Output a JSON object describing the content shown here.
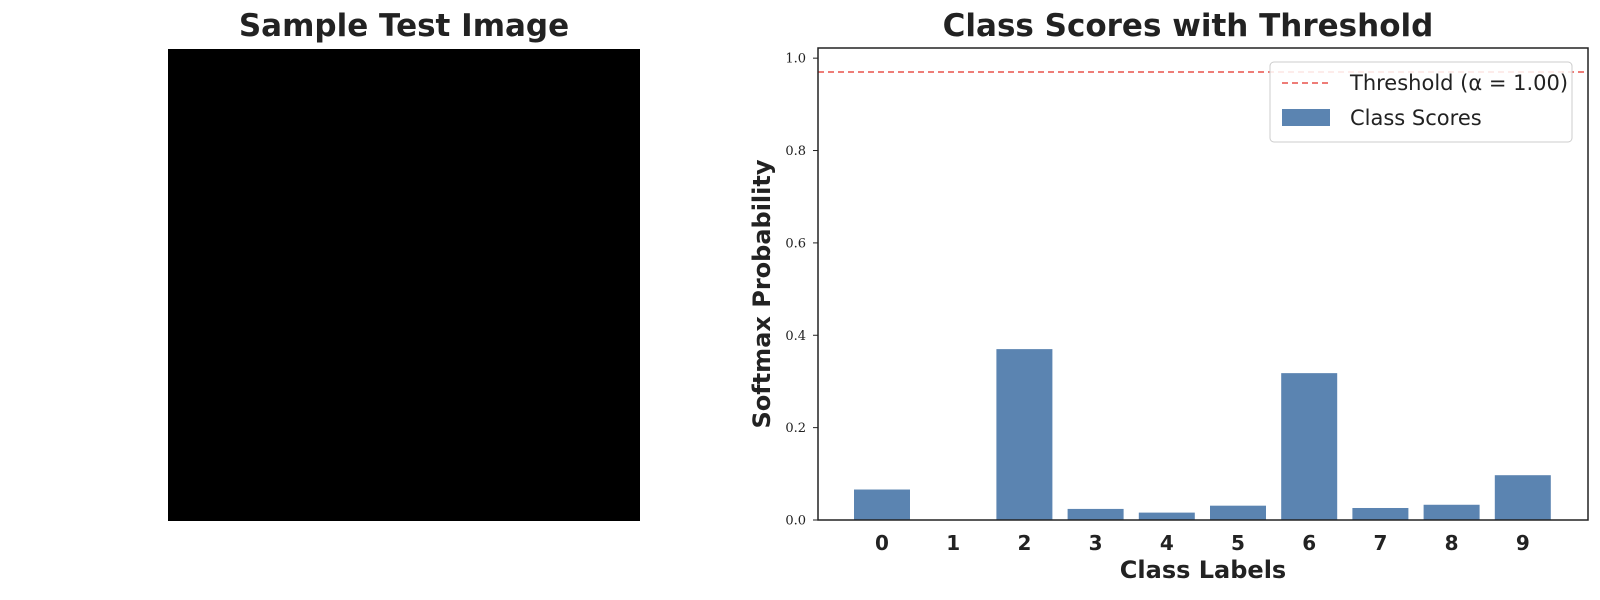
{
  "left_panel": {
    "title": "Sample Test Image",
    "grid_size": 28,
    "crop_columns": [
      3,
      22
    ],
    "pixels": [
      [
        0,
        0,
        0,
        0,
        0,
        0,
        0,
        0,
        0,
        0,
        0,
        0,
        0,
        0,
        0,
        0,
        0,
        0,
        0,
        0,
        0,
        0,
        0,
        0,
        0,
        0,
        0,
        0
      ],
      [
        0,
        0,
        0,
        0,
        0,
        0,
        0,
        0,
        0,
        0,
        0,
        0,
        0,
        0,
        0,
        0,
        0,
        0,
        0,
        0,
        0,
        0,
        0,
        0,
        0,
        0,
        0,
        0
      ],
      [
        0,
        0,
        0,
        0,
        0,
        0,
        0,
        0,
        0,
        0,
        0,
        0,
        0,
        0,
        0,
        0,
        0,
        0,
        0,
        0,
        0,
        0,
        0,
        0,
        0,
        0,
        0,
        0
      ],
      [
        0,
        0,
        0,
        0,
        0,
        0,
        0,
        0,
        0,
        0,
        0,
        0,
        0,
        0,
        0,
        0,
        0,
        0,
        0,
        0,
        0,
        0,
        0,
        0,
        0,
        0,
        0,
        0
      ],
      [
        0,
        0,
        0,
        0,
        0,
        0,
        0,
        0,
        0,
        0,
        0,
        0,
        0,
        0,
        0,
        0,
        0,
        0,
        0,
        0,
        0,
        0,
        0,
        0,
        0,
        0,
        0,
        0
      ],
      [
        0,
        0,
        0,
        0,
        0,
        0,
        0,
        0,
        0,
        0,
        0,
        0,
        0,
        0,
        0,
        0,
        0,
        0,
        0,
        0,
        0,
        0,
        0,
        0,
        0,
        0,
        0,
        0
      ],
      [
        0,
        0,
        0,
        0,
        0,
        0,
        0,
        0,
        0,
        0,
        0,
        0,
        0,
        0,
        0,
        0,
        0,
        0,
        0,
        0,
        0,
        0,
        0,
        0,
        0,
        0,
        0,
        0
      ],
      [
        0,
        0,
        0,
        0,
        0,
        0,
        0,
        0,
        0,
        0,
        0,
        0,
        0,
        0,
        0,
        0,
        0,
        0,
        0,
        0,
        0,
        0,
        0,
        0,
        0,
        0,
        0,
        0
      ],
      [
        0,
        0,
        0,
        0,
        0,
        0,
        0,
        0,
        0,
        0,
        0,
        0,
        0,
        0,
        0,
        0,
        0,
        0,
        0,
        0,
        0,
        0,
        0,
        0,
        0,
        0,
        0,
        0
      ],
      [
        0,
        0,
        0,
        0,
        0,
        0,
        0,
        0,
        0,
        0,
        0,
        0,
        0,
        0,
        0,
        0,
        0,
        0,
        0,
        0,
        0,
        0,
        0,
        0,
        0,
        0,
        0,
        0
      ],
      [
        0,
        0,
        0,
        0,
        0,
        0,
        0,
        0,
        0,
        0,
        0,
        0,
        0,
        0,
        0,
        0,
        0,
        0,
        0,
        0,
        0,
        0,
        0,
        0,
        0,
        0,
        0,
        0
      ],
      [
        0,
        0,
        0,
        0,
        0,
        0,
        0,
        0,
        0,
        0,
        0,
        0,
        0,
        0,
        0,
        0,
        0,
        0,
        0,
        0,
        0,
        0,
        0,
        0,
        0,
        0,
        0,
        0
      ],
      [
        0,
        0,
        0,
        0,
        0,
        0,
        0,
        0,
        0,
        0,
        0,
        0,
        0,
        0,
        0,
        0,
        0,
        0,
        0,
        0,
        0,
        0,
        0,
        0,
        0,
        0,
        0,
        0
      ],
      [
        0,
        0,
        0,
        0,
        0,
        0,
        0,
        0,
        0,
        0,
        0,
        0,
        0,
        0,
        0,
        0,
        0,
        0,
        0,
        0,
        0,
        0,
        0,
        0,
        0,
        0,
        0,
        0
      ],
      [
        0,
        0,
        0,
        0,
        0,
        0,
        0,
        0,
        0,
        0,
        0,
        0,
        0,
        0,
        0,
        0,
        0,
        0,
        0,
        0,
        0,
        0,
        0,
        0,
        0,
        0,
        0,
        0
      ],
      [
        0,
        0,
        0,
        0,
        0,
        0,
        0,
        0,
        0,
        0,
        0,
        0,
        0,
        0,
        0,
        0,
        0,
        0,
        0,
        0,
        0,
        0,
        0,
        0,
        0,
        0,
        0,
        0
      ],
      [
        0,
        0,
        0,
        0,
        0,
        0,
        0,
        0,
        0,
        0,
        0,
        0,
        0,
        0,
        0,
        0,
        0,
        0,
        0,
        0,
        0,
        0,
        0,
        0,
        0,
        0,
        0,
        0
      ],
      [
        0,
        0,
        0,
        0,
        0,
        0,
        0,
        0,
        0,
        0,
        0,
        0,
        0,
        0,
        0,
        0,
        0,
        0,
        0,
        0,
        0,
        0,
        0,
        0,
        0,
        0,
        0,
        0
      ],
      [
        0,
        0,
        0,
        0,
        0,
        0,
        0,
        0,
        0,
        0,
        0,
        0,
        0,
        0,
        0,
        0,
        0,
        0,
        0,
        0,
        0,
        0,
        0,
        0,
        0,
        0,
        0,
        0
      ],
      [
        0,
        0,
        0,
        0,
        0,
        0,
        0,
        0,
        0,
        0,
        0,
        0,
        0,
        0,
        0,
        0,
        0,
        0,
        0,
        0,
        0,
        0,
        0,
        0,
        0,
        0,
        0,
        0
      ],
      [
        0,
        0,
        0,
        0,
        0,
        0,
        0,
        0,
        0,
        0,
        0,
        0,
        0,
        0,
        0,
        0,
        0,
        0,
        0,
        0,
        0,
        0,
        0,
        0,
        0,
        0,
        0,
        0
      ],
      [
        0,
        0,
        0,
        0,
        0,
        0,
        0,
        0,
        0,
        0,
        0,
        0,
        0,
        0,
        0,
        0,
        0,
        0,
        0,
        0,
        0,
        0,
        0,
        0,
        0,
        0,
        0,
        0
      ],
      [
        0,
        0,
        0,
        0,
        0,
        0,
        0,
        0,
        0,
        0,
        0,
        0,
        0,
        0,
        0,
        0,
        0,
        0,
        0,
        0,
        0,
        0,
        0,
        0,
        0,
        0,
        0,
        0
      ],
      [
        0,
        0,
        0,
        0,
        0,
        0,
        0,
        0,
        0,
        0,
        0,
        0,
        0,
        0,
        0,
        0,
        0,
        0,
        0,
        0,
        0,
        0,
        0,
        0,
        0,
        0,
        0,
        0
      ],
      [
        0,
        0,
        0,
        0,
        0,
        0,
        0,
        0,
        0,
        0,
        0,
        0,
        0,
        0,
        0,
        0,
        0,
        0,
        0,
        0,
        0,
        0,
        0,
        0,
        0,
        0,
        0,
        0
      ],
      [
        0,
        0,
        0,
        0,
        0,
        0,
        0,
        0,
        0,
        0,
        0,
        0,
        0,
        0,
        0,
        0,
        0,
        0,
        0,
        0,
        0,
        0,
        0,
        0,
        0,
        0,
        0,
        0
      ],
      [
        0,
        0,
        0,
        0,
        0,
        0,
        0,
        0,
        0,
        0,
        0,
        0,
        0,
        0,
        0,
        0,
        0,
        0,
        0,
        0,
        0,
        0,
        0,
        0,
        0,
        0,
        0,
        0
      ],
      [
        0,
        0,
        0,
        0,
        0,
        0,
        0,
        0,
        0,
        0,
        0,
        0,
        0,
        0,
        0,
        0,
        0,
        0,
        0,
        0,
        0,
        0,
        0,
        0,
        0,
        0,
        0,
        0
      ]
    ]
  },
  "colors": {
    "bar": "#5b84b1",
    "threshold": "#e8504a",
    "axis": "#222222",
    "legend_border": "#cccccc"
  },
  "chart_data": {
    "type": "bar",
    "title": "Class Scores with Threshold",
    "xlabel": "Class Labels",
    "ylabel": "Softmax Probability",
    "categories": [
      "0",
      "1",
      "2",
      "3",
      "4",
      "5",
      "6",
      "7",
      "8",
      "9"
    ],
    "series": [
      {
        "name": "Class Scores",
        "values": [
          0.066,
          0.001,
          0.37,
          0.024,
          0.016,
          0.031,
          0.318,
          0.026,
          0.033,
          0.097
        ]
      }
    ],
    "threshold": {
      "name": "Threshold (α = 1.00)",
      "value": 0.97,
      "style": "dashed"
    },
    "ylim": [
      0,
      1.0
    ],
    "yticks": [
      "0.0",
      "0.2",
      "0.4",
      "0.6",
      "0.8",
      "1.0"
    ],
    "grid": false,
    "legend_position": "top-right"
  }
}
